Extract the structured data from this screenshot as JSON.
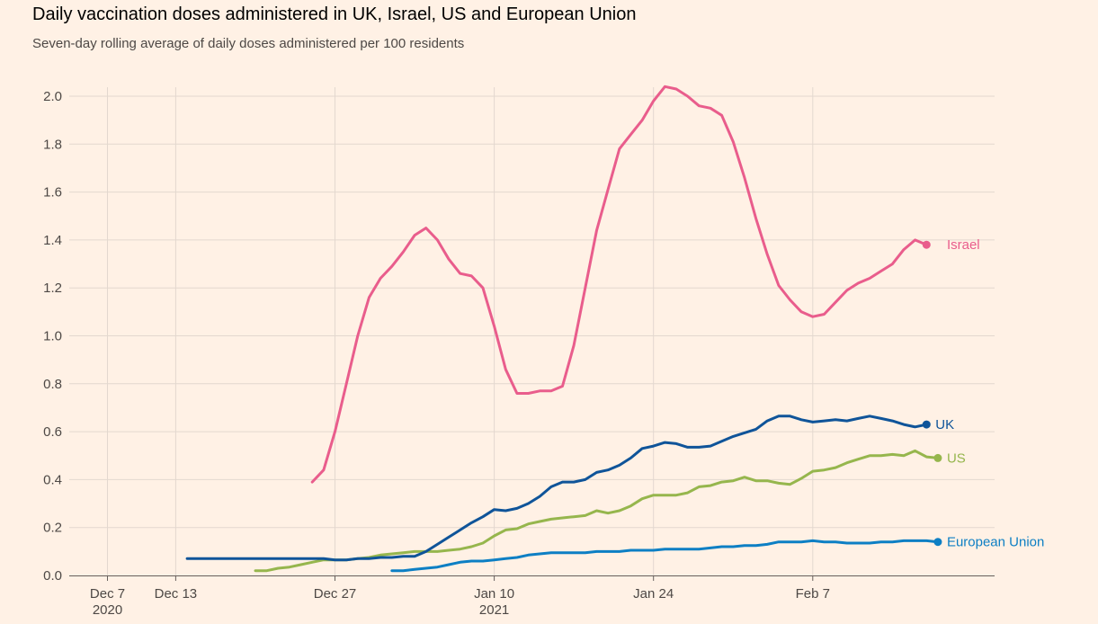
{
  "colors": {
    "background": "#fff1e5",
    "grid": "#e3d8cf",
    "axis": "#66605c",
    "text": "#4d4845"
  },
  "chart_data": {
    "type": "line",
    "title": "Daily vaccination doses administered in UK, Israel, US and European Union",
    "subtitle": "Seven-day rolling average of daily doses administered per 100 residents",
    "xlabel": "",
    "ylabel": "",
    "x_start": "2020-12-06",
    "x_end": "2021-02-17",
    "ylim": [
      0,
      2.0
    ],
    "y_ticks": [
      0,
      0.2,
      0.4,
      0.6,
      0.8,
      1.0,
      1.2,
      1.4,
      1.6,
      1.8,
      2.0
    ],
    "x_ticks": [
      {
        "date": "2020-12-07",
        "line1": "Dec 7",
        "line2": "2020"
      },
      {
        "date": "2020-12-13",
        "line1": "Dec 13",
        "line2": ""
      },
      {
        "date": "2020-12-27",
        "line1": "Dec 27",
        "line2": ""
      },
      {
        "date": "2021-01-10",
        "line1": "Jan 10",
        "line2": "2021"
      },
      {
        "date": "2021-01-24",
        "line1": "Jan 24",
        "line2": ""
      },
      {
        "date": "2021-02-07",
        "line1": "Feb 7",
        "line2": ""
      }
    ],
    "grid": true,
    "series": [
      {
        "name": "Israel",
        "color": "#e95d8c",
        "end_marker": true,
        "points": [
          [
            "2020-12-25",
            0.39
          ],
          [
            "2020-12-26",
            0.44
          ],
          [
            "2020-12-27",
            0.6
          ],
          [
            "2020-12-28",
            0.8
          ],
          [
            "2020-12-29",
            1.0
          ],
          [
            "2020-12-30",
            1.16
          ],
          [
            "2020-12-31",
            1.24
          ],
          [
            "2021-01-01",
            1.29
          ],
          [
            "2021-01-02",
            1.35
          ],
          [
            "2021-01-03",
            1.42
          ],
          [
            "2021-01-04",
            1.45
          ],
          [
            "2021-01-05",
            1.4
          ],
          [
            "2021-01-06",
            1.32
          ],
          [
            "2021-01-07",
            1.26
          ],
          [
            "2021-01-08",
            1.25
          ],
          [
            "2021-01-09",
            1.2
          ],
          [
            "2021-01-10",
            1.04
          ],
          [
            "2021-01-11",
            0.86
          ],
          [
            "2021-01-12",
            0.76
          ],
          [
            "2021-01-13",
            0.76
          ],
          [
            "2021-01-14",
            0.77
          ],
          [
            "2021-01-15",
            0.77
          ],
          [
            "2021-01-16",
            0.79
          ],
          [
            "2021-01-17",
            0.96
          ],
          [
            "2021-01-18",
            1.2
          ],
          [
            "2021-01-19",
            1.44
          ],
          [
            "2021-01-20",
            1.61
          ],
          [
            "2021-01-21",
            1.78
          ],
          [
            "2021-01-22",
            1.84
          ],
          [
            "2021-01-23",
            1.9
          ],
          [
            "2021-01-24",
            1.98
          ],
          [
            "2021-01-25",
            2.04
          ],
          [
            "2021-01-26",
            2.03
          ],
          [
            "2021-01-27",
            2.0
          ],
          [
            "2021-01-28",
            1.96
          ],
          [
            "2021-01-29",
            1.95
          ],
          [
            "2021-01-30",
            1.92
          ],
          [
            "2021-01-31",
            1.81
          ],
          [
            "2021-02-01",
            1.66
          ],
          [
            "2021-02-02",
            1.49
          ],
          [
            "2021-02-03",
            1.34
          ],
          [
            "2021-02-04",
            1.21
          ],
          [
            "2021-02-05",
            1.15
          ],
          [
            "2021-02-06",
            1.1
          ],
          [
            "2021-02-07",
            1.08
          ],
          [
            "2021-02-08",
            1.09
          ],
          [
            "2021-02-09",
            1.14
          ],
          [
            "2021-02-10",
            1.19
          ],
          [
            "2021-02-11",
            1.22
          ],
          [
            "2021-02-12",
            1.24
          ],
          [
            "2021-02-13",
            1.27
          ],
          [
            "2021-02-14",
            1.3
          ],
          [
            "2021-02-15",
            1.36
          ],
          [
            "2021-02-16",
            1.4
          ],
          [
            "2021-02-17",
            1.38
          ]
        ]
      },
      {
        "name": "UK",
        "color": "#0f5499",
        "end_marker": true,
        "points": [
          [
            "2020-12-14",
            0.07
          ],
          [
            "2020-12-16",
            0.07
          ],
          [
            "2020-12-18",
            0.07
          ],
          [
            "2020-12-20",
            0.07
          ],
          [
            "2020-12-22",
            0.07
          ],
          [
            "2020-12-24",
            0.07
          ],
          [
            "2020-12-26",
            0.07
          ],
          [
            "2020-12-27",
            0.065
          ],
          [
            "2020-12-28",
            0.065
          ],
          [
            "2020-12-29",
            0.07
          ],
          [
            "2020-12-30",
            0.07
          ],
          [
            "2020-12-31",
            0.075
          ],
          [
            "2021-01-01",
            0.075
          ],
          [
            "2021-01-02",
            0.08
          ],
          [
            "2021-01-03",
            0.08
          ],
          [
            "2021-01-04",
            0.1
          ],
          [
            "2021-01-05",
            0.13
          ],
          [
            "2021-01-06",
            0.16
          ],
          [
            "2021-01-07",
            0.19
          ],
          [
            "2021-01-08",
            0.22
          ],
          [
            "2021-01-09",
            0.245
          ],
          [
            "2021-01-10",
            0.275
          ],
          [
            "2021-01-11",
            0.27
          ],
          [
            "2021-01-12",
            0.28
          ],
          [
            "2021-01-13",
            0.3
          ],
          [
            "2021-01-14",
            0.33
          ],
          [
            "2021-01-15",
            0.37
          ],
          [
            "2021-01-16",
            0.39
          ],
          [
            "2021-01-17",
            0.39
          ],
          [
            "2021-01-18",
            0.4
          ],
          [
            "2021-01-19",
            0.43
          ],
          [
            "2021-01-20",
            0.44
          ],
          [
            "2021-01-21",
            0.46
          ],
          [
            "2021-01-22",
            0.49
          ],
          [
            "2021-01-23",
            0.53
          ],
          [
            "2021-01-24",
            0.54
          ],
          [
            "2021-01-25",
            0.555
          ],
          [
            "2021-01-26",
            0.55
          ],
          [
            "2021-01-27",
            0.535
          ],
          [
            "2021-01-28",
            0.535
          ],
          [
            "2021-01-29",
            0.54
          ],
          [
            "2021-01-30",
            0.56
          ],
          [
            "2021-01-31",
            0.58
          ],
          [
            "2021-02-01",
            0.595
          ],
          [
            "2021-02-02",
            0.61
          ],
          [
            "2021-02-03",
            0.645
          ],
          [
            "2021-02-04",
            0.665
          ],
          [
            "2021-02-05",
            0.665
          ],
          [
            "2021-02-06",
            0.65
          ],
          [
            "2021-02-07",
            0.64
          ],
          [
            "2021-02-08",
            0.645
          ],
          [
            "2021-02-09",
            0.65
          ],
          [
            "2021-02-10",
            0.645
          ],
          [
            "2021-02-11",
            0.655
          ],
          [
            "2021-02-12",
            0.665
          ],
          [
            "2021-02-13",
            0.655
          ],
          [
            "2021-02-14",
            0.645
          ],
          [
            "2021-02-15",
            0.63
          ],
          [
            "2021-02-16",
            0.62
          ],
          [
            "2021-02-17",
            0.63
          ]
        ]
      },
      {
        "name": "US",
        "color": "#96b64d",
        "end_marker": true,
        "points": [
          [
            "2020-12-20",
            0.02
          ],
          [
            "2020-12-21",
            0.02
          ],
          [
            "2020-12-22",
            0.03
          ],
          [
            "2020-12-23",
            0.035
          ],
          [
            "2020-12-24",
            0.045
          ],
          [
            "2020-12-25",
            0.055
          ],
          [
            "2020-12-26",
            0.065
          ],
          [
            "2020-12-27",
            0.065
          ],
          [
            "2020-12-28",
            0.065
          ],
          [
            "2020-12-29",
            0.07
          ],
          [
            "2020-12-30",
            0.075
          ],
          [
            "2020-12-31",
            0.085
          ],
          [
            "2021-01-01",
            0.09
          ],
          [
            "2021-01-02",
            0.095
          ],
          [
            "2021-01-03",
            0.1
          ],
          [
            "2021-01-04",
            0.1
          ],
          [
            "2021-01-05",
            0.1
          ],
          [
            "2021-01-06",
            0.105
          ],
          [
            "2021-01-07",
            0.11
          ],
          [
            "2021-01-08",
            0.12
          ],
          [
            "2021-01-09",
            0.135
          ],
          [
            "2021-01-10",
            0.165
          ],
          [
            "2021-01-11",
            0.19
          ],
          [
            "2021-01-12",
            0.195
          ],
          [
            "2021-01-13",
            0.215
          ],
          [
            "2021-01-14",
            0.225
          ],
          [
            "2021-01-15",
            0.235
          ],
          [
            "2021-01-16",
            0.24
          ],
          [
            "2021-01-17",
            0.245
          ],
          [
            "2021-01-18",
            0.25
          ],
          [
            "2021-01-19",
            0.27
          ],
          [
            "2021-01-20",
            0.26
          ],
          [
            "2021-01-21",
            0.27
          ],
          [
            "2021-01-22",
            0.29
          ],
          [
            "2021-01-23",
            0.32
          ],
          [
            "2021-01-24",
            0.335
          ],
          [
            "2021-01-25",
            0.335
          ],
          [
            "2021-01-26",
            0.335
          ],
          [
            "2021-01-27",
            0.345
          ],
          [
            "2021-01-28",
            0.37
          ],
          [
            "2021-01-29",
            0.375
          ],
          [
            "2021-01-30",
            0.39
          ],
          [
            "2021-01-31",
            0.395
          ],
          [
            "2021-02-01",
            0.41
          ],
          [
            "2021-02-02",
            0.395
          ],
          [
            "2021-02-03",
            0.395
          ],
          [
            "2021-02-04",
            0.385
          ],
          [
            "2021-02-05",
            0.38
          ],
          [
            "2021-02-06",
            0.405
          ],
          [
            "2021-02-07",
            0.435
          ],
          [
            "2021-02-08",
            0.44
          ],
          [
            "2021-02-09",
            0.45
          ],
          [
            "2021-02-10",
            0.47
          ],
          [
            "2021-02-11",
            0.485
          ],
          [
            "2021-02-12",
            0.5
          ],
          [
            "2021-02-13",
            0.5
          ],
          [
            "2021-02-14",
            0.505
          ],
          [
            "2021-02-15",
            0.5
          ],
          [
            "2021-02-16",
            0.52
          ],
          [
            "2021-02-17",
            0.495
          ],
          [
            "2021-02-18",
            0.49
          ]
        ]
      },
      {
        "name": "European Union",
        "color": "#0d7fc4",
        "end_marker": true,
        "points": [
          [
            "2021-01-01",
            0.02
          ],
          [
            "2021-01-02",
            0.02
          ],
          [
            "2021-01-03",
            0.025
          ],
          [
            "2021-01-04",
            0.03
          ],
          [
            "2021-01-05",
            0.035
          ],
          [
            "2021-01-06",
            0.045
          ],
          [
            "2021-01-07",
            0.055
          ],
          [
            "2021-01-08",
            0.06
          ],
          [
            "2021-01-09",
            0.06
          ],
          [
            "2021-01-10",
            0.065
          ],
          [
            "2021-01-11",
            0.07
          ],
          [
            "2021-01-12",
            0.075
          ],
          [
            "2021-01-13",
            0.085
          ],
          [
            "2021-01-14",
            0.09
          ],
          [
            "2021-01-15",
            0.095
          ],
          [
            "2021-01-16",
            0.095
          ],
          [
            "2021-01-17",
            0.095
          ],
          [
            "2021-01-18",
            0.095
          ],
          [
            "2021-01-19",
            0.1
          ],
          [
            "2021-01-20",
            0.1
          ],
          [
            "2021-01-21",
            0.1
          ],
          [
            "2021-01-22",
            0.105
          ],
          [
            "2021-01-23",
            0.105
          ],
          [
            "2021-01-24",
            0.105
          ],
          [
            "2021-01-25",
            0.11
          ],
          [
            "2021-01-26",
            0.11
          ],
          [
            "2021-01-27",
            0.11
          ],
          [
            "2021-01-28",
            0.11
          ],
          [
            "2021-01-29",
            0.115
          ],
          [
            "2021-01-30",
            0.12
          ],
          [
            "2021-01-31",
            0.12
          ],
          [
            "2021-02-01",
            0.125
          ],
          [
            "2021-02-02",
            0.125
          ],
          [
            "2021-02-03",
            0.13
          ],
          [
            "2021-02-04",
            0.14
          ],
          [
            "2021-02-05",
            0.14
          ],
          [
            "2021-02-06",
            0.14
          ],
          [
            "2021-02-07",
            0.145
          ],
          [
            "2021-02-08",
            0.14
          ],
          [
            "2021-02-09",
            0.14
          ],
          [
            "2021-02-10",
            0.135
          ],
          [
            "2021-02-11",
            0.135
          ],
          [
            "2021-02-12",
            0.135
          ],
          [
            "2021-02-13",
            0.14
          ],
          [
            "2021-02-14",
            0.14
          ],
          [
            "2021-02-15",
            0.145
          ],
          [
            "2021-02-16",
            0.145
          ],
          [
            "2021-02-17",
            0.145
          ],
          [
            "2021-02-18",
            0.14
          ]
        ]
      }
    ],
    "labels": [
      {
        "text": "Israel",
        "date": "2021-02-18",
        "value": 1.38
      },
      {
        "text": "UK",
        "date": "2021-02-17",
        "value": 0.63
      },
      {
        "text": "US",
        "date": "2021-02-18",
        "value": 0.49
      },
      {
        "text": "European Union",
        "date": "2021-02-18",
        "value": 0.14
      }
    ]
  }
}
